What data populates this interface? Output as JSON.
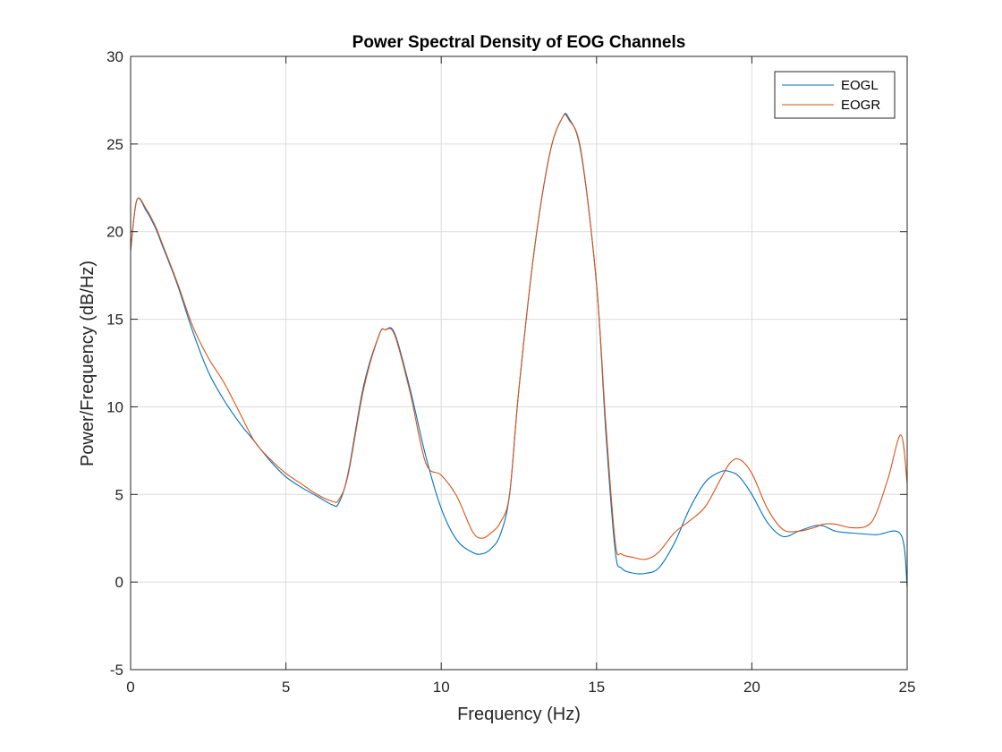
{
  "chart_data": {
    "type": "line",
    "title": "Power Spectral Density of EOG Channels",
    "xlabel": "Frequency (Hz)",
    "ylabel": "Power/Frequency (dB/Hz)",
    "xlim": [
      0,
      25
    ],
    "ylim": [
      -5,
      30
    ],
    "xticks": [
      0,
      5,
      10,
      15,
      20,
      25
    ],
    "yticks": [
      -5,
      0,
      5,
      10,
      15,
      20,
      25,
      30
    ],
    "grid": true,
    "legend": "top-right",
    "series": [
      {
        "name": "EOGL",
        "color": "#0072BD",
        "x": [
          0,
          0.2,
          0.5,
          0.8,
          1.0,
          1.5,
          2.0,
          2.5,
          3.0,
          3.5,
          4.0,
          4.5,
          5.0,
          5.5,
          6.0,
          6.5,
          6.7,
          7.0,
          7.5,
          8.0,
          8.2,
          8.5,
          9.0,
          9.5,
          10.0,
          10.5,
          11.0,
          11.3,
          11.6,
          11.9,
          12.2,
          12.5,
          13.0,
          13.5,
          13.9,
          14.1,
          14.5,
          15.0,
          15.3,
          15.6,
          15.8,
          16.2,
          16.6,
          17.0,
          17.5,
          18.0,
          18.5,
          19.0,
          19.3,
          19.6,
          20.0,
          20.5,
          21.0,
          21.5,
          22.0,
          22.3,
          22.7,
          23.2,
          24.0,
          24.8,
          25.0
        ],
        "y": [
          18.9,
          21.8,
          21.2,
          20.2,
          19.3,
          17.0,
          14.3,
          12.0,
          10.4,
          9.1,
          8.0,
          6.9,
          6.0,
          5.4,
          4.9,
          4.4,
          4.5,
          6.2,
          11.2,
          14.1,
          14.4,
          14.2,
          11.0,
          7.2,
          4.2,
          2.4,
          1.7,
          1.6,
          1.9,
          2.7,
          5.0,
          11.0,
          19.0,
          24.5,
          26.5,
          26.5,
          24.5,
          17.0,
          8.5,
          1.8,
          0.8,
          0.5,
          0.5,
          0.8,
          2.2,
          4.2,
          5.7,
          6.3,
          6.3,
          6.0,
          5.0,
          3.4,
          2.6,
          2.9,
          3.2,
          3.2,
          2.9,
          2.8,
          2.7,
          2.7,
          -0.3
        ]
      },
      {
        "name": "EOGR",
        "color": "#D95319",
        "x": [
          0,
          0.2,
          0.5,
          0.8,
          1.0,
          1.5,
          2.0,
          2.5,
          3.0,
          3.5,
          4.0,
          4.5,
          5.0,
          5.5,
          6.0,
          6.5,
          6.7,
          7.0,
          7.5,
          8.0,
          8.2,
          8.5,
          9.0,
          9.5,
          10.0,
          10.5,
          11.0,
          11.3,
          11.6,
          11.9,
          12.2,
          12.5,
          13.0,
          13.5,
          13.9,
          14.1,
          14.5,
          15.0,
          15.3,
          15.6,
          15.8,
          16.2,
          16.6,
          17.0,
          17.5,
          18.0,
          18.5,
          19.0,
          19.3,
          19.6,
          20.0,
          20.5,
          21.0,
          21.5,
          22.0,
          22.3,
          22.7,
          23.2,
          23.7,
          24.0,
          24.4,
          24.8,
          25.0
        ],
        "y": [
          18.9,
          21.8,
          21.3,
          20.3,
          19.4,
          17.1,
          14.6,
          12.8,
          11.4,
          9.7,
          8.0,
          7.0,
          6.2,
          5.6,
          5.0,
          4.6,
          4.7,
          6.1,
          11.0,
          14.1,
          14.4,
          14.1,
          10.8,
          6.8,
          6.1,
          4.9,
          2.9,
          2.5,
          2.8,
          3.4,
          5.0,
          11.0,
          19.0,
          24.5,
          26.5,
          26.4,
          24.6,
          17.0,
          9.0,
          2.3,
          1.6,
          1.4,
          1.3,
          1.7,
          2.8,
          3.5,
          4.3,
          5.9,
          6.8,
          7.0,
          6.2,
          4.2,
          3.0,
          2.9,
          3.1,
          3.3,
          3.3,
          3.1,
          3.2,
          3.9,
          6.0,
          8.4,
          5.6
        ]
      }
    ]
  }
}
